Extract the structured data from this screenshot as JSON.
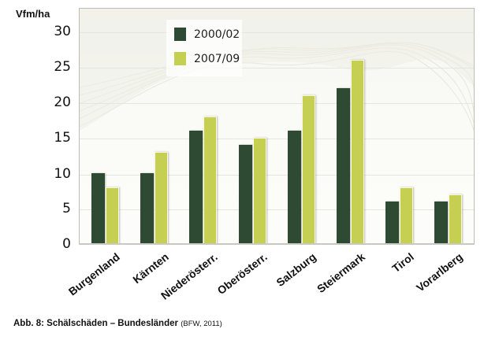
{
  "chart_data": {
    "type": "bar",
    "title": "",
    "ylabel": "Vfm/ha",
    "xlabel": "",
    "ylim": [
      0,
      30
    ],
    "yticks": [
      0,
      5,
      10,
      15,
      20,
      25,
      30
    ],
    "grid": true,
    "legend_position": "top-left",
    "categories": [
      "Burgenland",
      "Kärnten",
      "Niederösterr.",
      "Oberösterr.",
      "Salzburg",
      "Steiermark",
      "Tirol",
      "Vorarlberg"
    ],
    "series": [
      {
        "name": "2000/02",
        "color": "#2e4a33",
        "values": [
          10,
          10,
          16,
          14,
          16,
          22,
          6,
          6
        ]
      },
      {
        "name": "2007/09",
        "color": "#c5cf52",
        "values": [
          8,
          13,
          18,
          15,
          21,
          26,
          8,
          7
        ]
      }
    ]
  },
  "chart": {
    "unit_label": "Vfm/ha",
    "yticks": [
      "0",
      "5",
      "10",
      "15",
      "20",
      "25",
      "30"
    ],
    "legend": [
      "2000/02",
      "2007/09"
    ],
    "categories": [
      "Burgenland",
      "Kärnten",
      "Niederösterr.",
      "Oberösterr.",
      "Salzburg",
      "Steiermark",
      "Tirol",
      "Vorarlberg"
    ]
  },
  "caption": {
    "main": "Abb. 8: Schälschäden – Bundesländer",
    "source": "(BFW, 2011)"
  }
}
